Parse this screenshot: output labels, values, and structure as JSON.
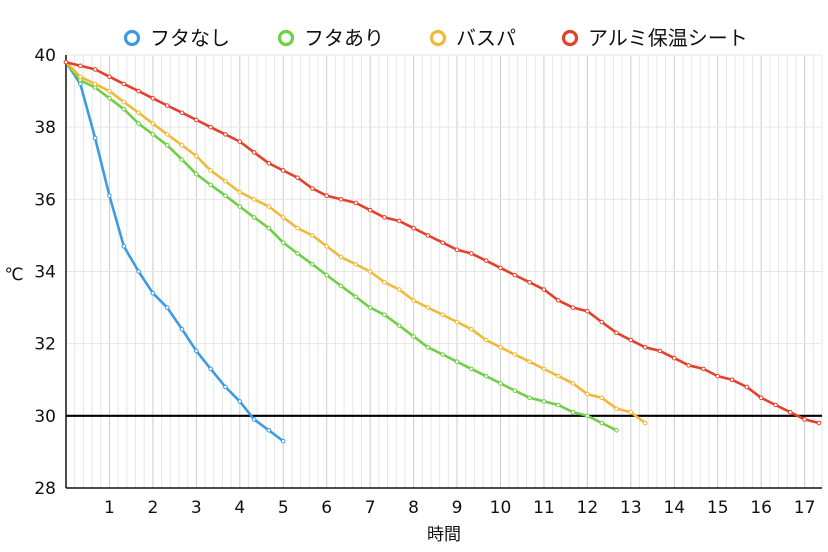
{
  "chart_data": {
    "type": "line",
    "title": "",
    "xlabel": "時間",
    "ylabel": "℃",
    "xlim": [
      0,
      17.4
    ],
    "ylim": [
      28,
      40
    ],
    "x_ticks": [
      1,
      2,
      3,
      4,
      5,
      6,
      7,
      8,
      9,
      10,
      11,
      12,
      13,
      14,
      15,
      16,
      17
    ],
    "y_ticks": [
      28,
      30,
      32,
      34,
      36,
      38,
      40
    ],
    "grid": true,
    "legend_position": "top",
    "reference_line": {
      "y": 30,
      "color": "#000000"
    },
    "series": [
      {
        "name": "フタなし",
        "color": "#3d9be6",
        "x": [
          0,
          0.33,
          0.67,
          1.0,
          1.33,
          1.67,
          2.0,
          2.33,
          2.67,
          3.0,
          3.33,
          3.67,
          4.0,
          4.33,
          4.67,
          5.0
        ],
        "y": [
          39.8,
          39.2,
          37.7,
          36.1,
          34.7,
          34.0,
          33.4,
          33.0,
          32.4,
          31.8,
          31.3,
          30.8,
          30.4,
          29.9,
          29.6,
          29.3
        ]
      },
      {
        "name": "フタあり",
        "color": "#6fcf45",
        "x": [
          0,
          0.33,
          0.67,
          1.0,
          1.33,
          1.67,
          2.0,
          2.33,
          2.67,
          3.0,
          3.33,
          3.67,
          4.0,
          4.33,
          4.67,
          5.0,
          5.33,
          5.67,
          6.0,
          6.33,
          6.67,
          7.0,
          7.33,
          7.67,
          8.0,
          8.33,
          8.67,
          9.0,
          9.33,
          9.67,
          10.0,
          10.33,
          10.67,
          11.0,
          11.33,
          11.67,
          12.0,
          12.33,
          12.67
        ],
        "y": [
          39.8,
          39.3,
          39.1,
          38.8,
          38.5,
          38.1,
          37.8,
          37.5,
          37.1,
          36.7,
          36.4,
          36.1,
          35.8,
          35.5,
          35.2,
          34.8,
          34.5,
          34.2,
          33.9,
          33.6,
          33.3,
          33.0,
          32.8,
          32.5,
          32.2,
          31.9,
          31.7,
          31.5,
          31.3,
          31.1,
          30.9,
          30.7,
          30.5,
          30.4,
          30.3,
          30.1,
          30.0,
          29.8,
          29.6
        ]
      },
      {
        "name": "バスパ",
        "color": "#f0b93a",
        "x": [
          0,
          0.33,
          0.67,
          1.0,
          1.33,
          1.67,
          2.0,
          2.33,
          2.67,
          3.0,
          3.33,
          3.67,
          4.0,
          4.33,
          4.67,
          5.0,
          5.33,
          5.67,
          6.0,
          6.33,
          6.67,
          7.0,
          7.33,
          7.67,
          8.0,
          8.33,
          8.67,
          9.0,
          9.33,
          9.67,
          10.0,
          10.33,
          10.67,
          11.0,
          11.33,
          11.67,
          12.0,
          12.33,
          12.67,
          13.0,
          13.33
        ],
        "y": [
          39.8,
          39.4,
          39.2,
          39.0,
          38.7,
          38.4,
          38.1,
          37.8,
          37.5,
          37.2,
          36.8,
          36.5,
          36.2,
          36.0,
          35.8,
          35.5,
          35.2,
          35.0,
          34.7,
          34.4,
          34.2,
          34.0,
          33.7,
          33.5,
          33.2,
          33.0,
          32.8,
          32.6,
          32.4,
          32.1,
          31.9,
          31.7,
          31.5,
          31.3,
          31.1,
          30.9,
          30.6,
          30.5,
          30.2,
          30.1,
          29.8
        ]
      },
      {
        "name": "アルミ保温シート",
        "color": "#e5402a",
        "x": [
          0,
          0.33,
          0.67,
          1.0,
          1.33,
          1.67,
          2.0,
          2.33,
          2.67,
          3.0,
          3.33,
          3.67,
          4.0,
          4.33,
          4.67,
          5.0,
          5.33,
          5.67,
          6.0,
          6.33,
          6.67,
          7.0,
          7.33,
          7.67,
          8.0,
          8.33,
          8.67,
          9.0,
          9.33,
          9.67,
          10.0,
          10.33,
          10.67,
          11.0,
          11.33,
          11.67,
          12.0,
          12.33,
          12.67,
          13.0,
          13.33,
          13.67,
          14.0,
          14.33,
          14.67,
          15.0,
          15.33,
          15.67,
          16.0,
          16.33,
          16.67,
          17.0,
          17.33
        ],
        "y": [
          39.8,
          39.7,
          39.6,
          39.4,
          39.2,
          39.0,
          38.8,
          38.6,
          38.4,
          38.2,
          38.0,
          37.8,
          37.6,
          37.3,
          37.0,
          36.8,
          36.6,
          36.3,
          36.1,
          36.0,
          35.9,
          35.7,
          35.5,
          35.4,
          35.2,
          35.0,
          34.8,
          34.6,
          34.5,
          34.3,
          34.1,
          33.9,
          33.7,
          33.5,
          33.2,
          33.0,
          32.9,
          32.6,
          32.3,
          32.1,
          31.9,
          31.8,
          31.6,
          31.4,
          31.3,
          31.1,
          31.0,
          30.8,
          30.5,
          30.3,
          30.1,
          29.9,
          29.8
        ]
      }
    ]
  }
}
